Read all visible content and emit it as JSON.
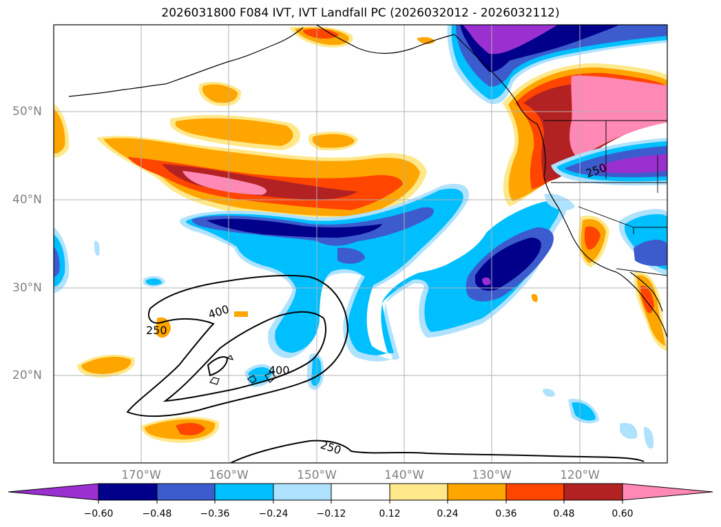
{
  "title": "2026031800 F084 IVT, IVT Landfall PC (2026032012 - 2026032112)",
  "map": {
    "lat_labels": [
      "50°N",
      "40°N",
      "30°N",
      "20°N"
    ],
    "lon_labels": [
      "170°W",
      "160°W",
      "150°W",
      "140°W",
      "130°W",
      "120°W"
    ],
    "contour_labels": [
      "250",
      "400",
      "400",
      "250",
      "250"
    ],
    "background_color": "#ffffff",
    "grid_color": "#b0b0b0",
    "label_color": "#808080"
  },
  "colorbar": {
    "ticks": [
      "−0.60",
      "−0.48",
      "−0.36",
      "−0.24",
      "−0.12",
      "0.12",
      "0.24",
      "0.36",
      "0.48",
      "0.60"
    ],
    "colors": [
      "#9b30d0",
      "#00008b",
      "#3c5bcc",
      "#00bfff",
      "#afe2ff",
      "#ffffff",
      "#ffe88a",
      "#ffa500",
      "#ff4500",
      "#b22222",
      "#ff88b4"
    ]
  }
}
